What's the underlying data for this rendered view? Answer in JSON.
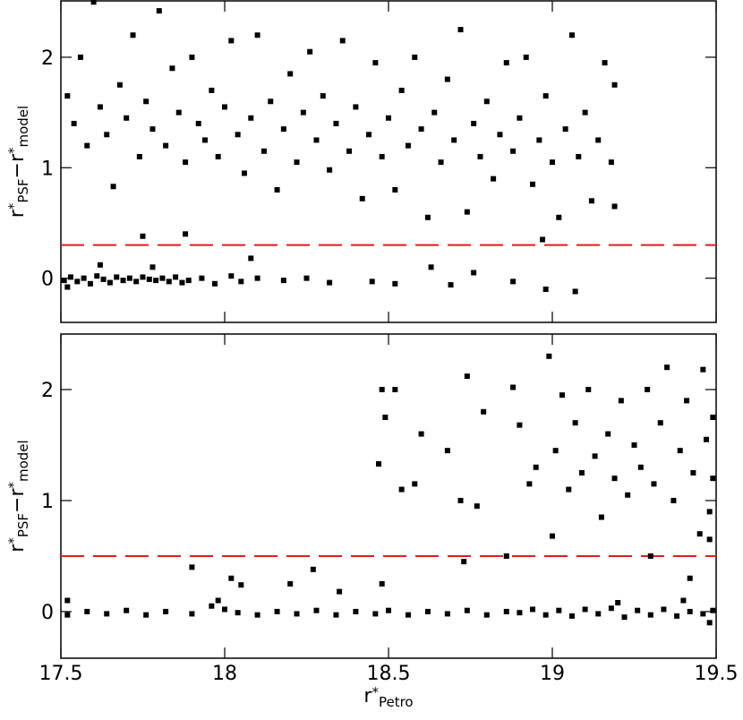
{
  "chart_data": [
    {
      "type": "scatter",
      "xlim": [
        17.5,
        19.5
      ],
      "ylim": [
        -0.4,
        2.51
      ],
      "xticks": [
        17.5,
        18,
        18.5,
        19,
        19.5
      ],
      "yticks": [
        0,
        1,
        2
      ],
      "show_xtick_labels": false,
      "ylabel": [
        {
          "text": "r"
        },
        {
          "text": "*",
          "pos": "sup"
        },
        {
          "text": "PSF",
          "pos": "sub"
        },
        {
          "text": "−r"
        },
        {
          "text": "*",
          "pos": "sup"
        },
        {
          "text": "model",
          "pos": "sub"
        }
      ],
      "hline": {
        "value": 0.3,
        "color": "#e41a1c"
      },
      "series": [
        {
          "color": "#000000",
          "x": [
            17.51,
            17.53,
            17.55,
            17.57,
            17.59,
            17.61,
            17.63,
            17.65,
            17.67,
            17.69,
            17.71,
            17.73,
            17.75,
            17.77,
            17.79,
            17.81,
            17.83,
            17.85,
            17.87,
            17.89,
            17.93,
            17.97,
            18.02,
            18.05,
            18.1,
            18.18,
            18.25,
            18.32,
            18.45,
            18.52,
            18.63,
            18.69,
            18.76,
            18.88,
            18.98,
            19.07,
            17.62,
            17.78,
            17.52,
            18.08,
            17.52,
            17.54,
            17.56,
            17.58,
            17.6,
            17.62,
            17.64,
            17.66,
            17.68,
            17.7,
            17.72,
            17.74,
            17.76,
            17.78,
            17.8,
            17.82,
            17.84,
            17.86,
            17.88,
            17.9,
            17.92,
            17.94,
            17.96,
            17.98,
            18.0,
            18.02,
            18.04,
            18.06,
            18.08,
            18.1,
            18.12,
            18.14,
            18.16,
            18.18,
            18.2,
            18.22,
            18.24,
            18.26,
            18.28,
            18.3,
            18.32,
            18.34,
            18.36,
            18.38,
            18.4,
            18.42,
            18.44,
            18.46,
            18.48,
            18.5,
            18.52,
            18.54,
            18.56,
            18.58,
            18.6,
            18.62,
            18.64,
            18.66,
            18.68,
            18.7,
            18.72,
            18.74,
            18.76,
            18.78,
            18.8,
            18.82,
            18.84,
            18.86,
            18.88,
            18.9,
            18.92,
            18.94,
            18.96,
            18.98,
            19.0,
            19.02,
            19.04,
            19.06,
            19.08,
            19.1,
            19.12,
            19.14,
            19.16,
            19.18,
            19.19,
            19.19,
            17.75,
            17.88,
            18.97
          ],
          "values": [
            -0.02,
            0.01,
            -0.03,
            0.0,
            -0.05,
            0.02,
            -0.01,
            -0.04,
            0.01,
            -0.02,
            0.0,
            -0.03,
            0.01,
            -0.01,
            -0.02,
            0.0,
            -0.03,
            0.01,
            -0.04,
            -0.02,
            0.0,
            -0.05,
            0.02,
            -0.03,
            0.0,
            -0.02,
            0.0,
            -0.04,
            -0.03,
            -0.05,
            0.1,
            -0.06,
            0.05,
            -0.03,
            -0.1,
            -0.12,
            0.12,
            0.1,
            -0.08,
            0.18,
            1.65,
            1.4,
            2.0,
            1.2,
            2.5,
            1.55,
            1.3,
            0.83,
            1.75,
            1.45,
            2.2,
            1.1,
            1.6,
            1.35,
            2.42,
            1.2,
            1.9,
            1.5,
            1.05,
            2.0,
            1.4,
            1.25,
            1.7,
            1.1,
            1.55,
            2.15,
            1.3,
            0.95,
            1.45,
            2.2,
            1.15,
            1.6,
            0.8,
            1.35,
            1.85,
            1.05,
            1.5,
            2.05,
            1.25,
            1.65,
            0.98,
            1.4,
            2.15,
            1.15,
            1.55,
            0.72,
            1.3,
            1.95,
            1.1,
            1.45,
            0.8,
            1.7,
            1.2,
            2.0,
            1.35,
            0.55,
            1.5,
            1.05,
            1.8,
            1.25,
            2.25,
            0.6,
            1.4,
            1.1,
            1.6,
            0.9,
            1.3,
            1.95,
            1.15,
            1.45,
            2.0,
            0.85,
            1.25,
            1.65,
            1.05,
            0.55,
            1.35,
            2.2,
            1.1,
            1.5,
            0.7,
            1.25,
            1.95,
            1.05,
            1.75,
            0.65,
            0.38,
            0.4,
            0.35
          ]
        }
      ]
    },
    {
      "type": "scatter",
      "xlim": [
        17.5,
        19.5
      ],
      "ylim": [
        -0.42,
        2.5
      ],
      "xticks": [
        17.5,
        18,
        18.5,
        19,
        19.5
      ],
      "yticks": [
        0,
        1,
        2
      ],
      "show_xtick_labels": true,
      "ylabel": [
        {
          "text": "r"
        },
        {
          "text": "*",
          "pos": "sup"
        },
        {
          "text": "PSF",
          "pos": "sub"
        },
        {
          "text": "−r"
        },
        {
          "text": "*",
          "pos": "sup"
        },
        {
          "text": "model",
          "pos": "sub"
        }
      ],
      "xlabel": [
        {
          "text": "r"
        },
        {
          "text": "*",
          "pos": "sup"
        },
        {
          "text": "Petro",
          "pos": "sub"
        }
      ],
      "hline": {
        "value": 0.5,
        "color": "#e41a1c"
      },
      "series": [
        {
          "color": "#000000",
          "x": [
            17.52,
            17.58,
            17.64,
            17.7,
            17.76,
            17.82,
            17.9,
            17.96,
            17.98,
            18.0,
            18.04,
            18.1,
            18.16,
            18.22,
            18.28,
            18.34,
            18.4,
            18.46,
            18.5,
            18.56,
            18.62,
            18.68,
            18.74,
            18.8,
            18.86,
            18.9,
            18.94,
            18.98,
            19.02,
            19.06,
            19.1,
            19.14,
            19.18,
            19.22,
            19.26,
            19.3,
            19.34,
            19.38,
            19.42,
            19.46,
            19.49,
            19.2,
            19.4,
            19.48,
            18.2,
            18.05,
            18.35,
            18.48,
            17.52,
            18.02,
            17.9,
            18.27,
            18.47,
            18.48,
            18.49,
            18.52,
            18.54,
            18.58,
            18.6,
            18.68,
            18.72,
            18.74,
            18.77,
            18.79,
            18.88,
            18.9,
            18.93,
            18.95,
            18.99,
            19.01,
            19.03,
            19.05,
            19.07,
            19.09,
            19.11,
            19.13,
            19.15,
            19.17,
            19.19,
            19.21,
            19.23,
            19.25,
            19.27,
            19.29,
            19.31,
            19.33,
            19.35,
            19.37,
            19.39,
            19.41,
            19.43,
            19.45,
            19.46,
            19.47,
            19.48,
            19.49,
            19.49,
            19.48,
            18.73,
            18.86,
            19.0,
            19.3,
            19.42
          ],
          "values": [
            -0.03,
            0.0,
            -0.02,
            0.01,
            -0.03,
            0.0,
            -0.02,
            0.05,
            0.1,
            0.02,
            -0.01,
            -0.03,
            0.0,
            -0.02,
            0.01,
            -0.03,
            0.0,
            -0.02,
            0.01,
            -0.03,
            0.0,
            -0.02,
            0.01,
            -0.03,
            0.0,
            -0.01,
            0.02,
            -0.03,
            0.01,
            -0.04,
            0.02,
            -0.02,
            0.03,
            -0.05,
            0.01,
            -0.03,
            0.02,
            -0.04,
            0.0,
            -0.02,
            0.01,
            0.08,
            0.1,
            -0.1,
            0.25,
            0.24,
            0.18,
            0.25,
            0.1,
            0.3,
            0.4,
            0.38,
            1.33,
            2.0,
            1.75,
            2.0,
            1.1,
            1.15,
            1.6,
            1.45,
            1.0,
            2.12,
            0.95,
            1.8,
            2.02,
            1.68,
            1.15,
            1.3,
            2.3,
            1.45,
            1.95,
            1.1,
            1.7,
            1.25,
            2.0,
            1.4,
            0.85,
            1.6,
            1.2,
            1.9,
            1.05,
            1.5,
            1.3,
            2.0,
            1.15,
            1.7,
            2.2,
            1.0,
            1.45,
            1.9,
            1.25,
            0.7,
            2.18,
            1.55,
            0.9,
            1.75,
            1.2,
            0.65,
            0.45,
            0.5,
            0.68,
            0.5,
            0.3
          ]
        }
      ]
    }
  ]
}
